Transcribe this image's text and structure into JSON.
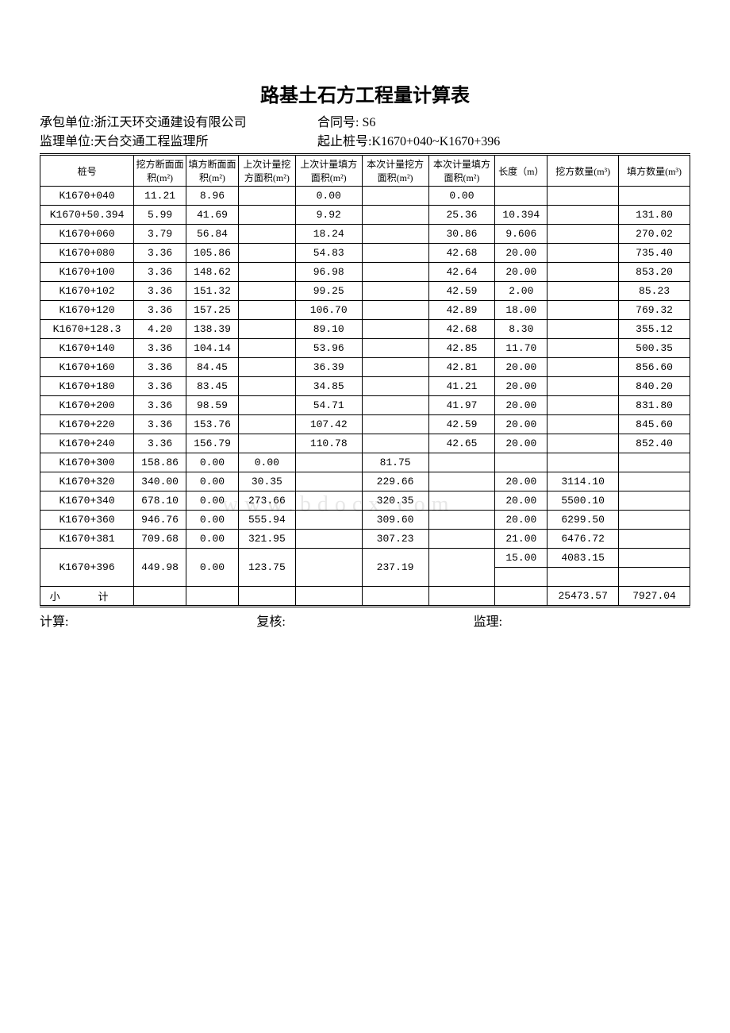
{
  "title": "路基土石方工程量计算表",
  "header": {
    "contractor_label": "承包单位:",
    "contractor": "浙江天环交通建设有限公司",
    "contract_label": "合同号:",
    "contract": "S6",
    "supervisor_label": "监理单位:",
    "supervisor": "天台交通工程监理所",
    "station_range_label": "起止桩号:",
    "station_range": "K1670+040~K1670+396"
  },
  "columns": [
    "桩号",
    "挖方断面面积(m²)",
    "填方断面面积(m²)",
    "上次计量挖方面积(m²)",
    "上次计量填方面积(m²)",
    "本次计量挖方面积(m²)",
    "本次计量填方面积(m²)",
    "长度（m）",
    "挖方数量(m³)",
    "填方数量(m³)"
  ],
  "data_rows": [
    {
      "station": "K1670+040",
      "cut": "11.21",
      "fill": "8.96",
      "pc": "",
      "pf": "0.00",
      "tc": "",
      "tf": "0.00"
    },
    {
      "station": "K1670+50.394",
      "cut": "5.99",
      "fill": "41.69",
      "pc": "",
      "pf": "9.92",
      "tc": "",
      "tf": "25.36"
    },
    {
      "station": "K1670+060",
      "cut": "3.79",
      "fill": "56.84",
      "pc": "",
      "pf": "18.24",
      "tc": "",
      "tf": "30.86"
    },
    {
      "station": "K1670+080",
      "cut": "3.36",
      "fill": "105.86",
      "pc": "",
      "pf": "54.83",
      "tc": "",
      "tf": "42.68"
    },
    {
      "station": "K1670+100",
      "cut": "3.36",
      "fill": "148.62",
      "pc": "",
      "pf": "96.98",
      "tc": "",
      "tf": "42.64"
    },
    {
      "station": "K1670+102",
      "cut": "3.36",
      "fill": "151.32",
      "pc": "",
      "pf": "99.25",
      "tc": "",
      "tf": "42.59"
    },
    {
      "station": "K1670+120",
      "cut": "3.36",
      "fill": "157.25",
      "pc": "",
      "pf": "106.70",
      "tc": "",
      "tf": "42.89"
    },
    {
      "station": "K1670+128.3",
      "cut": "4.20",
      "fill": "138.39",
      "pc": "",
      "pf": "89.10",
      "tc": "",
      "tf": "42.68"
    },
    {
      "station": "K1670+140",
      "cut": "3.36",
      "fill": "104.14",
      "pc": "",
      "pf": "53.96",
      "tc": "",
      "tf": "42.85"
    },
    {
      "station": "K1670+160",
      "cut": "3.36",
      "fill": "84.45",
      "pc": "",
      "pf": "36.39",
      "tc": "",
      "tf": "42.81"
    },
    {
      "station": "K1670+180",
      "cut": "3.36",
      "fill": "83.45",
      "pc": "",
      "pf": "34.85",
      "tc": "",
      "tf": "41.21"
    },
    {
      "station": "K1670+200",
      "cut": "3.36",
      "fill": "98.59",
      "pc": "",
      "pf": "54.71",
      "tc": "",
      "tf": "41.97"
    },
    {
      "station": "K1670+220",
      "cut": "3.36",
      "fill": "153.76",
      "pc": "",
      "pf": "107.42",
      "tc": "",
      "tf": "42.59"
    },
    {
      "station": "K1670+240",
      "cut": "3.36",
      "fill": "156.79",
      "pc": "",
      "pf": "110.78",
      "tc": "",
      "tf": "42.65"
    },
    {
      "station": "K1670+300",
      "cut": "158.86",
      "fill": "0.00",
      "pc": "0.00",
      "pf": "",
      "tc": "81.75",
      "tf": ""
    },
    {
      "station": "K1670+320",
      "cut": "340.00",
      "fill": "0.00",
      "pc": "30.35",
      "pf": "",
      "tc": "229.66",
      "tf": ""
    },
    {
      "station": "K1670+340",
      "cut": "678.10",
      "fill": "0.00",
      "pc": "273.66",
      "pf": "",
      "tc": "320.35",
      "tf": ""
    },
    {
      "station": "K1670+360",
      "cut": "946.76",
      "fill": "0.00",
      "pc": "555.94",
      "pf": "",
      "tc": "309.60",
      "tf": ""
    },
    {
      "station": "K1670+381",
      "cut": "709.68",
      "fill": "0.00",
      "pc": "321.95",
      "pf": "",
      "tc": "307.23",
      "tf": ""
    },
    {
      "station": "K1670+396",
      "cut": "449.98",
      "fill": "0.00",
      "pc": "123.75",
      "pf": "",
      "tc": "237.19",
      "tf": ""
    }
  ],
  "interval_rows": [
    {
      "len": "10.394",
      "cq": "",
      "fq": "131.80"
    },
    {
      "len": "9.606",
      "cq": "",
      "fq": "270.02"
    },
    {
      "len": "20.00",
      "cq": "",
      "fq": "735.40"
    },
    {
      "len": "20.00",
      "cq": "",
      "fq": "853.20"
    },
    {
      "len": "2.00",
      "cq": "",
      "fq": "85.23"
    },
    {
      "len": "18.00",
      "cq": "",
      "fq": "769.32"
    },
    {
      "len": "8.30",
      "cq": "",
      "fq": "355.12"
    },
    {
      "len": "11.70",
      "cq": "",
      "fq": "500.35"
    },
    {
      "len": "20.00",
      "cq": "",
      "fq": "856.60"
    },
    {
      "len": "20.00",
      "cq": "",
      "fq": "840.20"
    },
    {
      "len": "20.00",
      "cq": "",
      "fq": "831.80"
    },
    {
      "len": "20.00",
      "cq": "",
      "fq": "845.60"
    },
    {
      "len": "20.00",
      "cq": "",
      "fq": "852.40"
    },
    {
      "len": "",
      "cq": "",
      "fq": ""
    },
    {
      "len": "20.00",
      "cq": "3114.10",
      "fq": ""
    },
    {
      "len": "20.00",
      "cq": "5500.10",
      "fq": ""
    },
    {
      "len": "20.00",
      "cq": "6299.50",
      "fq": ""
    },
    {
      "len": "21.00",
      "cq": "6476.72",
      "fq": ""
    },
    {
      "len": "15.00",
      "cq": "4083.15",
      "fq": ""
    }
  ],
  "subtotal": {
    "label": "小 计",
    "cut_qty": "25473.57",
    "fill_qty": "7927.04"
  },
  "footer": {
    "calc": "计算:",
    "check": "复核:",
    "supervise": "监理:"
  },
  "watermark": "www.bdocx.com",
  "colors": {
    "border": "#000000",
    "bg": "#ffffff",
    "watermark": "#e8e8e8"
  }
}
